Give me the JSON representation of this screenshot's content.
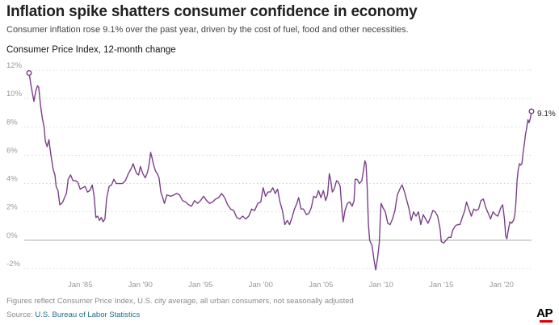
{
  "header": {
    "title": "Inflation spike shatters consumer confidence in economy",
    "subtitle": "Consumer inflation rose 9.1% over the past year, driven by the cost of fuel, food and other necessities.",
    "chart_label": "Consumer Price Index, 12-month change"
  },
  "footer": {
    "note": "Figures reflect Consumer Price Index, U.S. city average, all urban consumers, not seasonally adjusted",
    "source_prefix": "Source:",
    "source_link": "U.S. Bureau of Labor Statistics",
    "logo": "AP"
  },
  "colors": {
    "line": "#7b3f8a",
    "zero_line": "#bbbbbb",
    "grid": "#cccccc",
    "axis_text": "#999999",
    "logo_accent": "#e00000"
  },
  "chart_data": {
    "type": "line",
    "title": "Consumer Price Index, 12-month change",
    "xlabel": "",
    "ylabel": "",
    "x_range": [
      1980.75,
      2022.5
    ],
    "ylim": [
      -2,
      12
    ],
    "y_ticks": [
      {
        "value": 12,
        "label": "12%"
      },
      {
        "value": 10,
        "label": "10%"
      },
      {
        "value": 8,
        "label": "8%"
      },
      {
        "value": 6,
        "label": "6%"
      },
      {
        "value": 4,
        "label": "4%"
      },
      {
        "value": 2,
        "label": "2%"
      },
      {
        "value": 0,
        "label": "0%"
      },
      {
        "value": -2,
        "label": "-2%"
      }
    ],
    "x_ticks": [
      {
        "value": 1985,
        "label": "Jan '85"
      },
      {
        "value": 1990,
        "label": "Jan '90"
      },
      {
        "value": 1995,
        "label": "Jan '95"
      },
      {
        "value": 2000,
        "label": "Jan '00"
      },
      {
        "value": 2005,
        "label": "Jan '05"
      },
      {
        "value": 2010,
        "label": "Jan '10"
      },
      {
        "value": 2015,
        "label": "Jan '15"
      },
      {
        "value": 2020,
        "label": "Jan '20"
      }
    ],
    "grid": "horizontal dotted",
    "end_label": "9.1%",
    "series": [
      {
        "points": [
          [
            1980.75,
            11.8
          ],
          [
            1980.9,
            11.0
          ],
          [
            1981.0,
            10.5
          ],
          [
            1981.15,
            9.8
          ],
          [
            1981.3,
            10.5
          ],
          [
            1981.45,
            10.9
          ],
          [
            1981.55,
            10.8
          ],
          [
            1981.7,
            9.5
          ],
          [
            1981.85,
            8.6
          ],
          [
            1982.0,
            8.0
          ],
          [
            1982.1,
            7.0
          ],
          [
            1982.25,
            6.6
          ],
          [
            1982.4,
            7.1
          ],
          [
            1982.5,
            6.4
          ],
          [
            1982.6,
            5.8
          ],
          [
            1982.75,
            5.0
          ],
          [
            1982.9,
            4.6
          ],
          [
            1983.0,
            3.8
          ],
          [
            1983.15,
            3.5
          ],
          [
            1983.3,
            2.5
          ],
          [
            1983.45,
            2.6
          ],
          [
            1983.55,
            2.7
          ],
          [
            1983.7,
            3.0
          ],
          [
            1983.85,
            3.3
          ],
          [
            1984.0,
            4.3
          ],
          [
            1984.2,
            4.6
          ],
          [
            1984.4,
            4.2
          ],
          [
            1984.6,
            4.2
          ],
          [
            1984.8,
            4.1
          ],
          [
            1985.0,
            3.6
          ],
          [
            1985.2,
            3.7
          ],
          [
            1985.4,
            3.8
          ],
          [
            1985.6,
            3.4
          ],
          [
            1985.8,
            3.5
          ],
          [
            1986.0,
            3.9
          ],
          [
            1986.15,
            3.1
          ],
          [
            1986.3,
            1.6
          ],
          [
            1986.45,
            1.7
          ],
          [
            1986.6,
            1.4
          ],
          [
            1986.75,
            1.6
          ],
          [
            1986.9,
            1.3
          ],
          [
            1987.05,
            1.5
          ],
          [
            1987.2,
            3.0
          ],
          [
            1987.4,
            3.8
          ],
          [
            1987.6,
            3.9
          ],
          [
            1987.8,
            4.3
          ],
          [
            1988.0,
            4.0
          ],
          [
            1988.25,
            4.0
          ],
          [
            1988.5,
            4.0
          ],
          [
            1988.75,
            4.2
          ],
          [
            1989.0,
            4.7
          ],
          [
            1989.2,
            5.0
          ],
          [
            1989.4,
            5.4
          ],
          [
            1989.55,
            5.0
          ],
          [
            1989.7,
            4.7
          ],
          [
            1989.85,
            4.6
          ],
          [
            1990.0,
            5.2
          ],
          [
            1990.2,
            4.7
          ],
          [
            1990.4,
            4.4
          ],
          [
            1990.6,
            4.8
          ],
          [
            1990.75,
            5.5
          ],
          [
            1990.85,
            6.2
          ],
          [
            1991.0,
            5.7
          ],
          [
            1991.1,
            5.3
          ],
          [
            1991.25,
            4.9
          ],
          [
            1991.4,
            4.7
          ],
          [
            1991.55,
            4.4
          ],
          [
            1991.7,
            3.4
          ],
          [
            1991.85,
            3.0
          ],
          [
            1992.0,
            2.6
          ],
          [
            1992.2,
            3.2
          ],
          [
            1992.5,
            3.1
          ],
          [
            1992.8,
            3.2
          ],
          [
            1993.0,
            3.3
          ],
          [
            1993.25,
            3.2
          ],
          [
            1993.5,
            2.8
          ],
          [
            1993.75,
            2.7
          ],
          [
            1994.0,
            2.5
          ],
          [
            1994.25,
            2.4
          ],
          [
            1994.5,
            2.8
          ],
          [
            1994.75,
            2.6
          ],
          [
            1995.0,
            2.8
          ],
          [
            1995.25,
            3.1
          ],
          [
            1995.5,
            2.8
          ],
          [
            1995.75,
            2.6
          ],
          [
            1996.0,
            2.7
          ],
          [
            1996.25,
            2.9
          ],
          [
            1996.5,
            3.0
          ],
          [
            1996.75,
            3.3
          ],
          [
            1997.0,
            3.0
          ],
          [
            1997.25,
            2.5
          ],
          [
            1997.5,
            2.2
          ],
          [
            1997.75,
            2.1
          ],
          [
            1998.0,
            1.6
          ],
          [
            1998.25,
            1.5
          ],
          [
            1998.5,
            1.7
          ],
          [
            1998.75,
            1.5
          ],
          [
            1999.0,
            1.7
          ],
          [
            1999.25,
            2.2
          ],
          [
            1999.5,
            2.1
          ],
          [
            1999.75,
            2.6
          ],
          [
            2000.0,
            2.7
          ],
          [
            2000.2,
            3.7
          ],
          [
            2000.4,
            3.1
          ],
          [
            2000.6,
            3.4
          ],
          [
            2000.8,
            3.4
          ],
          [
            2001.0,
            3.7
          ],
          [
            2001.2,
            3.3
          ],
          [
            2001.4,
            3.6
          ],
          [
            2001.6,
            2.7
          ],
          [
            2001.8,
            2.1
          ],
          [
            2002.0,
            1.1
          ],
          [
            2002.2,
            1.4
          ],
          [
            2002.4,
            1.1
          ],
          [
            2002.6,
            1.6
          ],
          [
            2002.8,
            2.2
          ],
          [
            2003.0,
            2.6
          ],
          [
            2003.15,
            3.0
          ],
          [
            2003.35,
            2.2
          ],
          [
            2003.55,
            2.2
          ],
          [
            2003.8,
            1.8
          ],
          [
            2004.0,
            1.9
          ],
          [
            2004.2,
            2.3
          ],
          [
            2004.4,
            3.1
          ],
          [
            2004.6,
            3.0
          ],
          [
            2004.8,
            3.5
          ],
          [
            2005.0,
            3.0
          ],
          [
            2005.2,
            3.5
          ],
          [
            2005.4,
            2.8
          ],
          [
            2005.55,
            3.2
          ],
          [
            2005.7,
            4.7
          ],
          [
            2005.8,
            4.3
          ],
          [
            2005.95,
            3.4
          ],
          [
            2006.1,
            3.6
          ],
          [
            2006.3,
            4.2
          ],
          [
            2006.45,
            4.1
          ],
          [
            2006.6,
            3.8
          ],
          [
            2006.75,
            2.1
          ],
          [
            2006.85,
            1.3
          ],
          [
            2007.0,
            2.1
          ],
          [
            2007.2,
            2.6
          ],
          [
            2007.4,
            2.7
          ],
          [
            2007.6,
            2.4
          ],
          [
            2007.75,
            2.8
          ],
          [
            2007.85,
            4.3
          ],
          [
            2008.0,
            4.3
          ],
          [
            2008.2,
            4.0
          ],
          [
            2008.4,
            4.2
          ],
          [
            2008.55,
            5.0
          ],
          [
            2008.65,
            5.6
          ],
          [
            2008.75,
            5.4
          ],
          [
            2008.85,
            3.7
          ],
          [
            2008.95,
            1.1
          ],
          [
            2009.05,
            0.0
          ],
          [
            2009.25,
            -0.4
          ],
          [
            2009.4,
            -1.3
          ],
          [
            2009.55,
            -2.1
          ],
          [
            2009.7,
            -1.3
          ],
          [
            2009.85,
            -0.2
          ],
          [
            2009.95,
            1.8
          ],
          [
            2010.0,
            2.6
          ],
          [
            2010.15,
            2.3
          ],
          [
            2010.35,
            2.0
          ],
          [
            2010.55,
            1.2
          ],
          [
            2010.75,
            1.1
          ],
          [
            2010.95,
            1.5
          ],
          [
            2011.15,
            2.1
          ],
          [
            2011.35,
            3.2
          ],
          [
            2011.55,
            3.6
          ],
          [
            2011.75,
            3.9
          ],
          [
            2011.95,
            3.4
          ],
          [
            2012.1,
            2.9
          ],
          [
            2012.3,
            2.3
          ],
          [
            2012.5,
            1.4
          ],
          [
            2012.7,
            2.0
          ],
          [
            2012.9,
            1.7
          ],
          [
            2013.1,
            2.0
          ],
          [
            2013.3,
            1.1
          ],
          [
            2013.5,
            1.8
          ],
          [
            2013.7,
            1.5
          ],
          [
            2013.9,
            1.2
          ],
          [
            2014.1,
            1.6
          ],
          [
            2014.3,
            2.1
          ],
          [
            2014.5,
            2.0
          ],
          [
            2014.7,
            1.7
          ],
          [
            2014.9,
            0.8
          ],
          [
            2015.0,
            -0.1
          ],
          [
            2015.2,
            -0.2
          ],
          [
            2015.4,
            0.0
          ],
          [
            2015.6,
            0.2
          ],
          [
            2015.8,
            0.2
          ],
          [
            2015.95,
            0.7
          ],
          [
            2016.15,
            1.0
          ],
          [
            2016.35,
            1.1
          ],
          [
            2016.55,
            1.1
          ],
          [
            2016.75,
            1.6
          ],
          [
            2016.95,
            2.1
          ],
          [
            2017.1,
            2.7
          ],
          [
            2017.3,
            2.2
          ],
          [
            2017.5,
            1.7
          ],
          [
            2017.7,
            2.2
          ],
          [
            2017.9,
            2.1
          ],
          [
            2018.1,
            2.2
          ],
          [
            2018.3,
            2.8
          ],
          [
            2018.5,
            2.9
          ],
          [
            2018.7,
            2.3
          ],
          [
            2018.9,
            1.9
          ],
          [
            2019.1,
            1.5
          ],
          [
            2019.3,
            2.0
          ],
          [
            2019.5,
            1.8
          ],
          [
            2019.7,
            1.7
          ],
          [
            2019.95,
            2.3
          ],
          [
            2020.1,
            2.5
          ],
          [
            2020.25,
            1.5
          ],
          [
            2020.35,
            0.3
          ],
          [
            2020.45,
            0.1
          ],
          [
            2020.55,
            0.6
          ],
          [
            2020.7,
            1.3
          ],
          [
            2020.85,
            1.2
          ],
          [
            2021.0,
            1.4
          ],
          [
            2021.1,
            1.7
          ],
          [
            2021.2,
            2.6
          ],
          [
            2021.3,
            4.2
          ],
          [
            2021.4,
            5.0
          ],
          [
            2021.5,
            5.4
          ],
          [
            2021.6,
            5.3
          ],
          [
            2021.7,
            5.4
          ],
          [
            2021.8,
            6.2
          ],
          [
            2021.9,
            6.8
          ],
          [
            2022.0,
            7.5
          ],
          [
            2022.1,
            7.9
          ],
          [
            2022.2,
            8.5
          ],
          [
            2022.3,
            8.3
          ],
          [
            2022.4,
            8.6
          ],
          [
            2022.5,
            9.1
          ]
        ]
      }
    ]
  }
}
